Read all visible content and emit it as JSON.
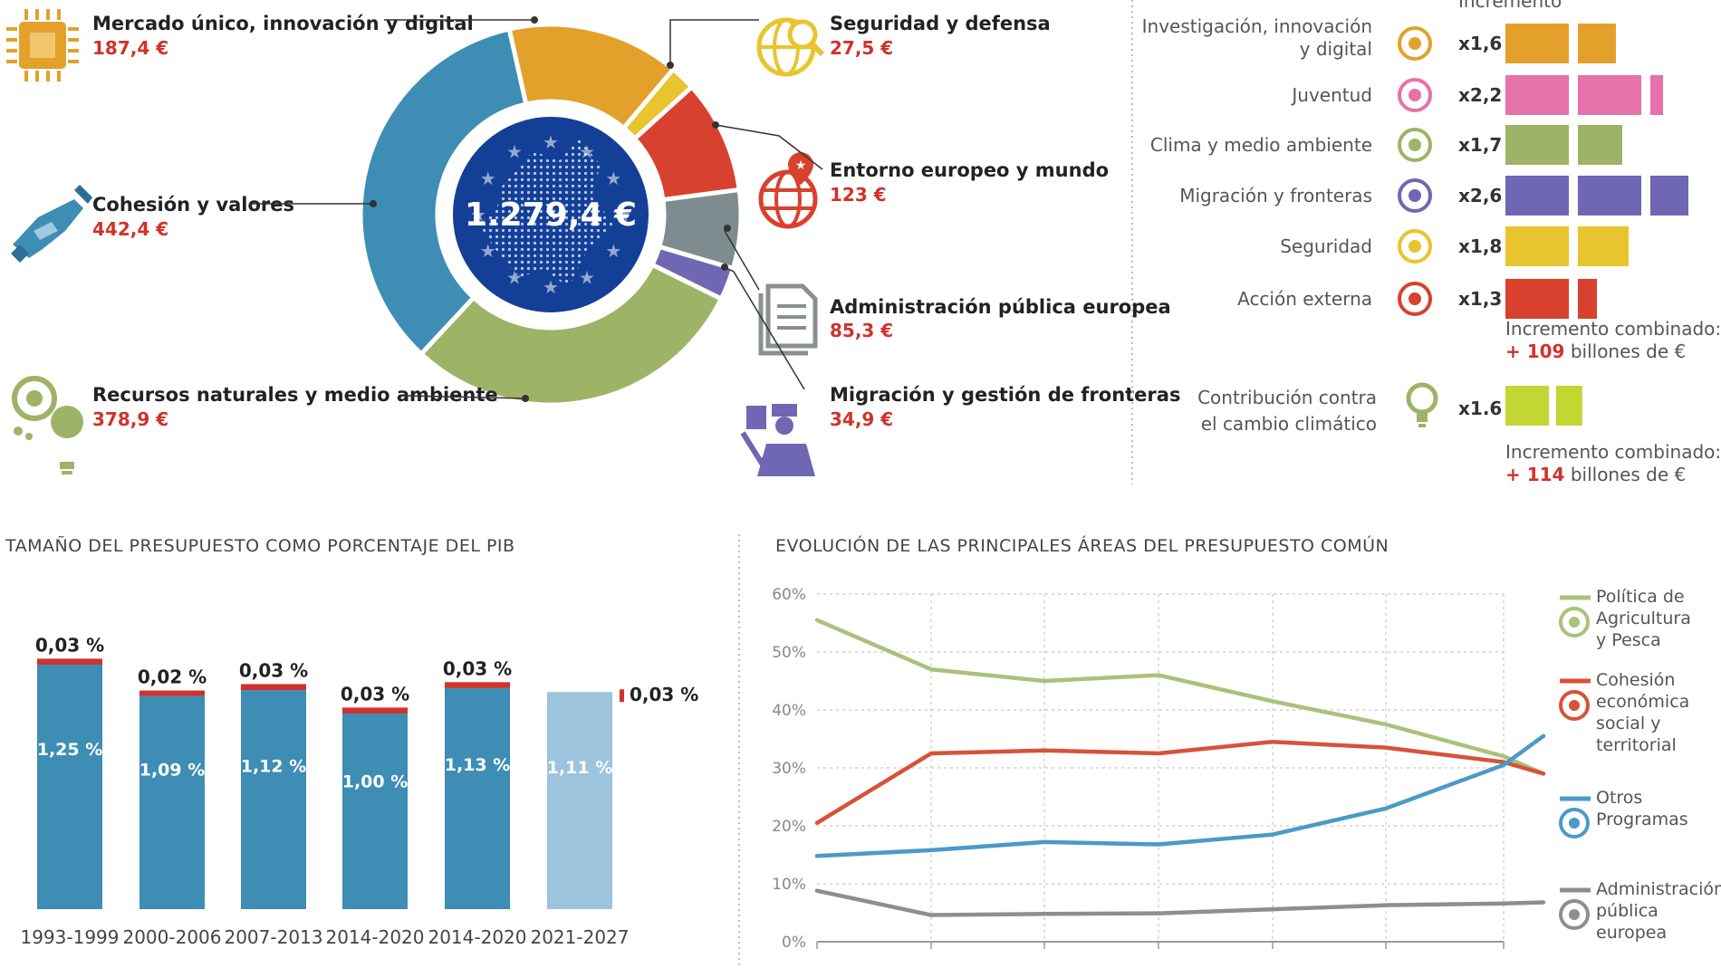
{
  "donut": {
    "total_label": "1.279,4 €",
    "segments": [
      {
        "name": "Mercado único, innovación y digital",
        "value_label": "187,4 €",
        "value": 187.4,
        "color": "#e3a12c",
        "icon": "chip-icon"
      },
      {
        "name": "Seguridad y defensa",
        "value_label": "27,5 €",
        "value": 27.5,
        "color": "#e8c52e",
        "icon": "globe-search-icon"
      },
      {
        "name": "Entorno europeo y mundo",
        "value_label": "123 €",
        "value": 123,
        "color": "#d9412f",
        "icon": "globe-pin-icon"
      },
      {
        "name": "Administración pública europea",
        "value_label": "85,3 €",
        "value": 85.3,
        "color": "#7e8c8f",
        "icon": "document-icon"
      },
      {
        "name": "Migración y gestión de fronteras",
        "value_label": "34,9 €",
        "value": 34.9,
        "color": "#6f67b3",
        "icon": "border-officer-icon"
      },
      {
        "name": "Recursos naturales y medio ambiente",
        "value_label": "378,9 €",
        "value": 378.9,
        "color": "#9db466",
        "icon": "leaf-bulb-icon"
      },
      {
        "name": "Cohesión y valores",
        "value_label": "442,4 €",
        "value": 442.4,
        "color": "#3e8db4",
        "icon": "handshake-icon"
      }
    ]
  },
  "increment": {
    "header": "Incremento",
    "rows": [
      {
        "label_lines": [
          "Investigación, innovación",
          "y digital"
        ],
        "mult": "x1,6",
        "factor": 1.6,
        "color": "#e3a12c",
        "icon": "chip-icon"
      },
      {
        "label_lines": [
          "Juventud"
        ],
        "mult": "x2,2",
        "factor": 2.2,
        "color": "#e572a8",
        "icon": "youth-icon"
      },
      {
        "label_lines": [
          "Clima y medio ambiente"
        ],
        "mult": "x1,7",
        "factor": 1.7,
        "color": "#9db466",
        "icon": "flower-icon"
      },
      {
        "label_lines": [
          "Migración y fronteras"
        ],
        "mult": "x2,6",
        "factor": 2.6,
        "color": "#6f67b3",
        "icon": "border-officer-icon"
      },
      {
        "label_lines": [
          "Seguridad"
        ],
        "mult": "x1,8",
        "factor": 1.8,
        "color": "#e8c52e",
        "icon": "globe-search-icon"
      },
      {
        "label_lines": [
          "Acción externa"
        ],
        "mult": "x1,3",
        "factor": 1.3,
        "color": "#d9412f",
        "icon": "globe-pin-icon"
      }
    ],
    "combined_1": {
      "label": "Incremento combinado:",
      "value": "+ 109",
      "suffix": " billones de €"
    },
    "climate": {
      "label_lines": [
        "Contribución contra",
        "el cambio climático"
      ],
      "mult": "x1.6",
      "factor": 1.6,
      "color": "#c2d634",
      "icon": "bulb-icon"
    },
    "combined_2": {
      "label": "Incremento combinado:",
      "value": "+ 114",
      "suffix": " billones de €"
    }
  },
  "gdp_chart": {
    "title": "TAMAÑO DEL PRESUPUESTO COMO PORCENTAJE DEL PIB"
  },
  "evolution_chart": {
    "title": "EVOLUCIÓN DE LAS PRINCIPALES ÁREAS DEL PRESUPUESTO COMÚN"
  },
  "chart_data": [
    {
      "type": "bar",
      "title": "TAMAÑO DEL PRESUPUESTO COMO PORCENTAJE DEL PIB",
      "categories": [
        "1993-1999",
        "2000-2006",
        "2007-2013",
        "2014-2020",
        "2014-2020",
        "2021-2027"
      ],
      "series": [
        {
          "values": [
            1.25,
            1.09,
            1.12,
            1.0,
            1.13,
            1.11
          ],
          "labels": [
            "1,25 %",
            "1,09 %",
            "1,12 %",
            "1,00 %",
            "1,13 %",
            "1,11 %"
          ],
          "colors": [
            "#3e8db4",
            "#3e8db4",
            "#3e8db4",
            "#3e8db4",
            "#3e8db4",
            "#9cc4dc"
          ]
        },
        {
          "values": [
            0.03,
            0.02,
            0.03,
            0.03,
            0.03,
            0.03
          ],
          "labels": [
            "0,03 %",
            "0,02 %",
            "0,03 %",
            "0,03 %",
            "0,03 %",
            "0,03 %"
          ],
          "color": "#d0322c"
        }
      ],
      "ylim": [
        0,
        1.3
      ]
    },
    {
      "type": "line",
      "title": "EVOLUCIÓN DE LAS PRINCIPALES ÁREAS DEL PRESUPUESTO COMÚN",
      "x_ticks": [
        "",
        "",
        "",
        "",
        "",
        "",
        ""
      ],
      "ylim": [
        0,
        60
      ],
      "yticks": [
        "0%",
        "10%",
        "20%",
        "30%",
        "40%",
        "50%",
        "60%"
      ],
      "grid": true,
      "legend": "right",
      "series": [
        {
          "name_lines": [
            "Política de",
            "Agricultura",
            "y Pesca"
          ],
          "color": "#a9c27a",
          "icon": "fish-icon",
          "values": [
            55.5,
            47,
            45,
            46,
            41.5,
            37.5,
            32,
            29
          ]
        },
        {
          "name_lines": [
            "Cohesión",
            "económica",
            "social y",
            "territorial"
          ],
          "color": "#d9513a",
          "icon": "euro-magnifier-icon",
          "values": [
            20.5,
            32.5,
            33,
            32.5,
            34.5,
            33.5,
            31,
            29
          ]
        },
        {
          "name_lines": [
            "Otros",
            "Programas"
          ],
          "color": "#4a9ac8",
          "icon": "pie-icon",
          "values": [
            14.8,
            15.8,
            17.2,
            16.8,
            18.5,
            23,
            30.5,
            35.5
          ]
        },
        {
          "name_lines": [
            "Administración",
            "pública",
            "europea"
          ],
          "color": "#8a8f92",
          "icon": "document-icon",
          "values": [
            8.8,
            4.6,
            4.8,
            4.9,
            5.6,
            6.3,
            6.6,
            6.8
          ]
        }
      ]
    }
  ]
}
